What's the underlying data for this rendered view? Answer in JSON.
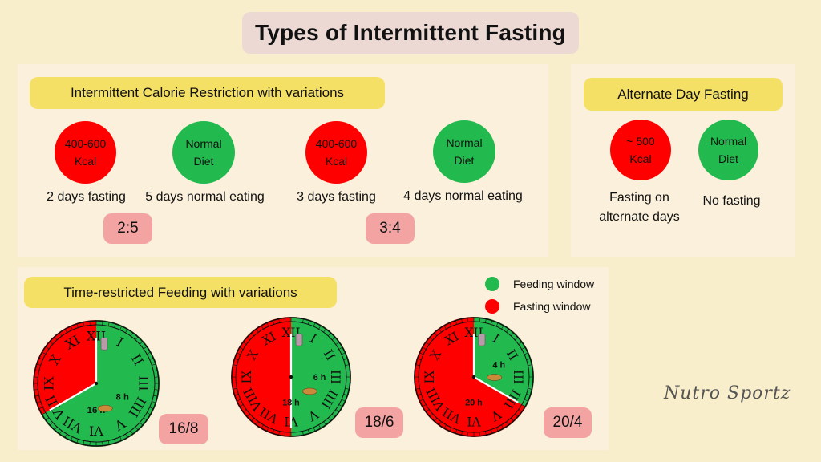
{
  "title": "Types of Intermittent Fasting",
  "colors": {
    "background": "#f8eecb",
    "panel": "#faf0dc",
    "title_bg": "#ecd9d3",
    "pill": "#f5e066",
    "fasting_red": "#ff0000",
    "feeding_green": "#22b94e",
    "ratio_badge": "#f4a3a3"
  },
  "icr": {
    "heading": "Intermittent Calorie Restriction with variations",
    "items": [
      {
        "line1": "400-600",
        "line2": "Kcal",
        "caption": "2 days fasting",
        "color": "red"
      },
      {
        "line1": "Normal",
        "line2": "Diet",
        "caption": "5 days normal eating",
        "color": "green"
      },
      {
        "line1": "400-600",
        "line2": "Kcal",
        "caption": "3 days fasting",
        "color": "red"
      },
      {
        "line1": "Normal",
        "line2": "Diet",
        "caption": "4 days normal eating",
        "color": "green"
      }
    ],
    "ratios": [
      "2:5",
      "3:4"
    ]
  },
  "adf": {
    "heading": "Alternate Day Fasting",
    "items": [
      {
        "line1": "~ 500",
        "line2": "Kcal",
        "caption_line1": "Fasting on",
        "caption_line2": "alternate days",
        "color": "red"
      },
      {
        "line1": "Normal",
        "line2": "Diet",
        "caption_line1": "No fasting",
        "caption_line2": "",
        "color": "green"
      }
    ]
  },
  "trf": {
    "heading": "Time-restricted Feeding with variations",
    "legend": {
      "feeding": "Feeding window",
      "fasting": "Fasting window"
    },
    "clocks": [
      {
        "fasting_hours": 16,
        "feeding_hours": 8,
        "fasting_label": "16 h",
        "feeding_label": "8 h",
        "ratio": "16/8"
      },
      {
        "fasting_hours": 18,
        "feeding_hours": 6,
        "fasting_label": "18 h",
        "feeding_label": "6 h",
        "ratio": "18/6"
      },
      {
        "fasting_hours": 20,
        "feeding_hours": 4,
        "fasting_label": "20 h",
        "feeding_label": "4 h",
        "ratio": "20/4"
      }
    ],
    "numerals": [
      "XII",
      "I",
      "II",
      "III",
      "IIII",
      "V",
      "VI",
      "VII",
      "VIII",
      "IX",
      "X",
      "XI"
    ]
  },
  "brand": "Nutro Sportz"
}
